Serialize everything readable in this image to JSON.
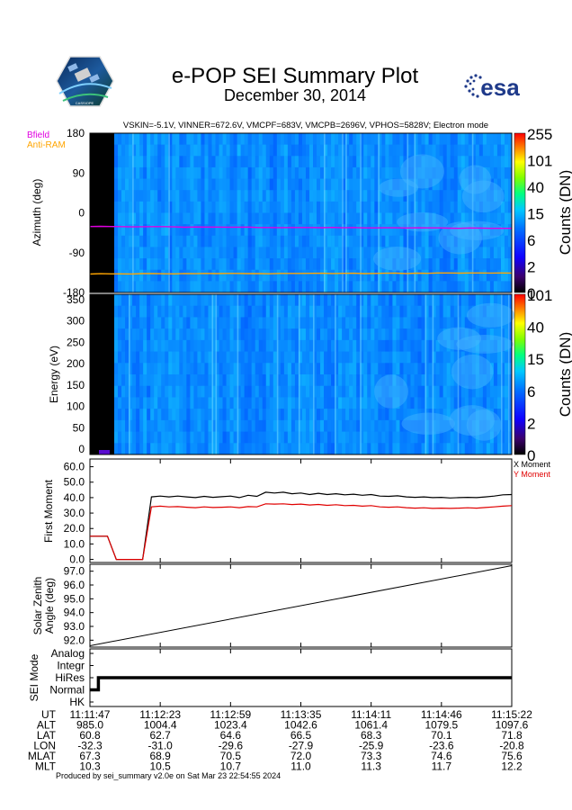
{
  "header": {
    "title": "e-POP SEI Summary Plot",
    "date": "December 30, 2014",
    "logo_left": "cassiope-mission-logo",
    "logo_right_text": "esa",
    "subtitle": "VSKIN=-5.1V, VINNER=672.6V, VMCPF=683V, VMCPB=2696V, VPHOS=5828V; Electron mode"
  },
  "legend_top": {
    "bfield": {
      "label": "Bfield",
      "color": "#e000e0"
    },
    "antiram": {
      "label": "Anti-RAM",
      "color": "#ffa500"
    }
  },
  "chart_data": [
    {
      "type": "heatmap",
      "name": "azimuth-spectrogram",
      "ylabel": "Azimuth (deg)",
      "ylim": [
        -180,
        180
      ],
      "yticks": [
        "180",
        "90",
        "0",
        "-90",
        "-180"
      ],
      "colorbar_label": "Counts (DN)",
      "colorbar_ticks": [
        "255",
        "101",
        "40",
        "15",
        "6",
        "2",
        "0"
      ],
      "series": [
        {
          "name": "Bfield",
          "color": "#e000e0",
          "y_start": -31,
          "y_end": -35
        },
        {
          "name": "Anti-RAM",
          "color": "#ffa500",
          "y_start": -138,
          "y_end": -136
        }
      ]
    },
    {
      "type": "heatmap",
      "name": "energy-spectrogram",
      "ylabel": "Energy (eV)",
      "ylim": [
        0,
        350
      ],
      "yticks": [
        "350",
        "300",
        "250",
        "200",
        "150",
        "100",
        "50",
        "0"
      ],
      "colorbar_label": "Counts (DN)",
      "colorbar_ticks": [
        "101",
        "40",
        "15",
        "6",
        "2",
        "0"
      ]
    },
    {
      "type": "line",
      "name": "first-moment",
      "ylabel": "First Moment",
      "ylim": [
        -2,
        65
      ],
      "yticks": [
        "60.0",
        "50.0",
        "40.0",
        "30.0",
        "20.0",
        "10.0",
        "0.0"
      ],
      "series": [
        {
          "name": "X Moment",
          "color": "#000000",
          "values": [
            15,
            15,
            15,
            0,
            0,
            0,
            0,
            40.5,
            41,
            40.5,
            41,
            40.5,
            40,
            40.8,
            40.2,
            40.6,
            41,
            40,
            41.5,
            40.8,
            43.5,
            43,
            43.5,
            42.5,
            43,
            42,
            42.8,
            42,
            42.5,
            41.8,
            42.2,
            41.5,
            42,
            41,
            40.8,
            41.2,
            40.5,
            40.2,
            40.5,
            40,
            40.2,
            39.8,
            40,
            40.2,
            40,
            40.5,
            41,
            41.8,
            42
          ]
        },
        {
          "name": "Y Moment",
          "color": "#e00000",
          "values": [
            15,
            15,
            15,
            0,
            0,
            0,
            0,
            34,
            34.5,
            34,
            34.2,
            33.8,
            33.5,
            34,
            33.6,
            33.8,
            34,
            33.5,
            34.2,
            34,
            36,
            35.8,
            36,
            35.5,
            35.8,
            35.2,
            35.6,
            35,
            35.4,
            34.8,
            35,
            34.5,
            34.8,
            34,
            33.8,
            34,
            33.5,
            33.2,
            33.4,
            33,
            33.2,
            33,
            33.2,
            33.4,
            33.2,
            33.6,
            34,
            34.5,
            34.8
          ]
        }
      ]
    },
    {
      "type": "line",
      "name": "solar-zenith-angle",
      "ylabel": "Solar Zenith Angle (deg)",
      "ylabel_lines": [
        "Solar Zenith",
        "Angle (deg)"
      ],
      "ylim": [
        91.5,
        97.5
      ],
      "yticks": [
        "97.0",
        "96.0",
        "95.0",
        "94.0",
        "93.0",
        "92.0"
      ],
      "series": [
        {
          "name": "SZA",
          "color": "#000000",
          "x": [
            0,
            1
          ],
          "values": [
            91.6,
            97.4
          ]
        }
      ]
    },
    {
      "type": "line",
      "name": "sei-mode",
      "ylabel": "SEI Mode",
      "categories": [
        "Analog",
        "Integr",
        "HiRes",
        "Normal",
        "HK"
      ],
      "series": [
        {
          "name": "Mode",
          "color": "#000000",
          "steps": [
            {
              "x0": 0,
              "x1": 0.02,
              "mode": "Normal"
            },
            {
              "x0": 0.02,
              "x1": 1,
              "mode": "HiRes"
            }
          ]
        }
      ]
    }
  ],
  "ephemeris": {
    "row_labels": [
      "UT",
      "ALT",
      "LAT",
      "LON",
      "MLAT",
      "MLT"
    ],
    "columns": [
      [
        "11:11:47",
        "985.0",
        "60.8",
        "-32.3",
        "67.3",
        "10.3"
      ],
      [
        "11:12:23",
        "1004.4",
        "62.7",
        "-31.0",
        "68.9",
        "10.5"
      ],
      [
        "11:12:59",
        "1023.4",
        "64.6",
        "-29.6",
        "70.5",
        "10.7"
      ],
      [
        "11:13:35",
        "1042.6",
        "66.5",
        "-27.9",
        "72.0",
        "11.0"
      ],
      [
        "11:14:11",
        "1061.4",
        "68.3",
        "-25.9",
        "73.3",
        "11.3"
      ],
      [
        "11:14:46",
        "1079.5",
        "70.1",
        "-23.6",
        "74.6",
        "11.7"
      ],
      [
        "11:15:22",
        "1097.6",
        "71.8",
        "-20.8",
        "75.6",
        "12.2"
      ]
    ]
  },
  "footer": "Produced by sei_summary v2.0e on Sat Mar 23 22:54:55 2024"
}
